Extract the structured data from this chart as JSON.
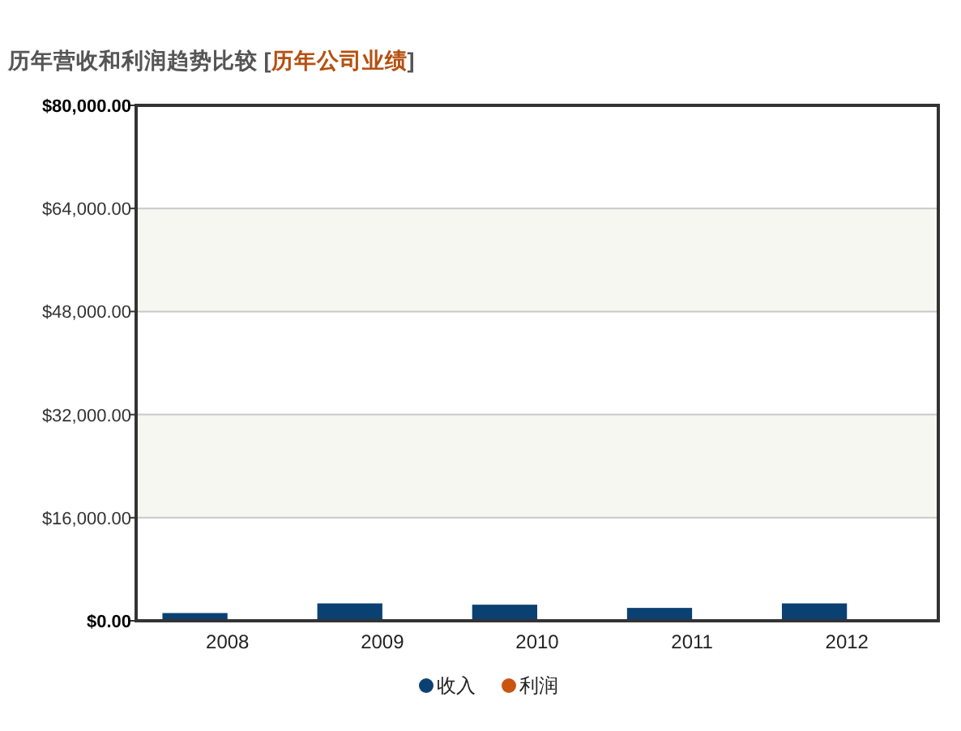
{
  "chart_data": {
    "type": "bar",
    "title": "历年营收和利润趋势比较",
    "subtitle": "[历年公司业绩]",
    "categories": [
      "2008",
      "2009",
      "2010",
      "2011",
      "2012"
    ],
    "series": [
      {
        "name": "收入",
        "color": "#0b4172",
        "values": [
          1200,
          2700,
          2500,
          2000,
          2700
        ]
      },
      {
        "name": "利润",
        "color": "#c95511",
        "values": [
          null,
          null,
          null,
          null,
          null
        ]
      }
    ],
    "ylim": [
      0,
      80000
    ],
    "yticks": [
      {
        "value": 0,
        "label": "$0.00"
      },
      {
        "value": 16000,
        "label": "$16,000.00"
      },
      {
        "value": 32000,
        "label": "$32,000.00"
      },
      {
        "value": 48000,
        "label": "$48,000.00"
      },
      {
        "value": 64000,
        "label": "$64,000.00"
      },
      {
        "value": 80000,
        "label": "$80,000.00"
      }
    ],
    "grid": "y",
    "legend": "bottom"
  }
}
